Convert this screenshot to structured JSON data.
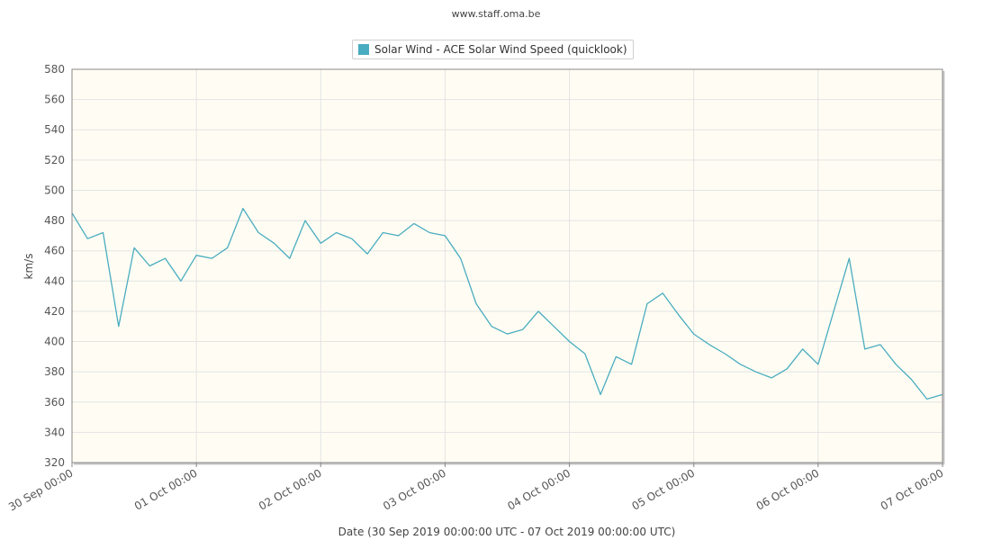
{
  "source_text": "www.staff.oma.be",
  "chart_data": {
    "type": "line",
    "title": "",
    "ylabel": "km/s",
    "xlabel": "Date (30 Sep 2019 00:00:00 UTC - 07 Oct 2019 00:00:00 UTC)",
    "ylim": [
      320,
      580
    ],
    "yticks": [
      320,
      340,
      360,
      380,
      400,
      420,
      440,
      460,
      480,
      500,
      520,
      540,
      560,
      580
    ],
    "xlim": [
      "2019-09-30 00:00",
      "2019-10-07 00:00"
    ],
    "xticks": [
      "30 Sep 00:00",
      "01 Oct 00:00",
      "02 Oct 00:00",
      "03 Oct 00:00",
      "04 Oct 00:00",
      "05 Oct 00:00",
      "06 Oct 00:00",
      "07 Oct 00:00"
    ],
    "grid": true,
    "legend": "top-center",
    "series": [
      {
        "name": "Solar Wind - ACE Solar Wind Speed (quicklook)",
        "color": "#4aacc0",
        "x": [
          "2019-09-30 00:00",
          "2019-09-30 03:00",
          "2019-09-30 06:00",
          "2019-09-30 09:00",
          "2019-09-30 12:00",
          "2019-09-30 15:00",
          "2019-09-30 18:00",
          "2019-09-30 21:00",
          "2019-10-01 00:00",
          "2019-10-01 03:00",
          "2019-10-01 06:00",
          "2019-10-01 09:00",
          "2019-10-01 12:00",
          "2019-10-01 15:00",
          "2019-10-01 18:00",
          "2019-10-01 21:00",
          "2019-10-02 00:00",
          "2019-10-02 03:00",
          "2019-10-02 06:00",
          "2019-10-02 09:00",
          "2019-10-02 12:00",
          "2019-10-02 15:00",
          "2019-10-02 18:00",
          "2019-10-02 21:00",
          "2019-10-03 00:00",
          "2019-10-03 03:00",
          "2019-10-03 06:00",
          "2019-10-03 09:00",
          "2019-10-03 12:00",
          "2019-10-03 15:00",
          "2019-10-03 18:00",
          "2019-10-03 21:00",
          "2019-10-04 00:00",
          "2019-10-04 03:00",
          "2019-10-04 06:00",
          "2019-10-04 09:00",
          "2019-10-04 12:00",
          "2019-10-04 15:00",
          "2019-10-04 18:00",
          "2019-10-04 21:00",
          "2019-10-05 00:00",
          "2019-10-05 03:00",
          "2019-10-05 06:00",
          "2019-10-05 09:00",
          "2019-10-05 12:00",
          "2019-10-05 15:00",
          "2019-10-05 18:00",
          "2019-10-05 21:00",
          "2019-10-06 00:00",
          "2019-10-06 03:00",
          "2019-10-06 06:00",
          "2019-10-06 09:00",
          "2019-10-06 12:00",
          "2019-10-06 15:00",
          "2019-10-06 18:00",
          "2019-10-06 21:00",
          "2019-10-07 00:00"
        ],
        "values": [
          485,
          468,
          472,
          410,
          462,
          450,
          455,
          440,
          457,
          455,
          462,
          488,
          472,
          465,
          455,
          480,
          465,
          472,
          468,
          458,
          472,
          470,
          478,
          472,
          470,
          455,
          425,
          410,
          405,
          408,
          420,
          410,
          400,
          392,
          365,
          390,
          385,
          425,
          432,
          418,
          405,
          398,
          392,
          385,
          380,
          376,
          382,
          395,
          385,
          420,
          455,
          395,
          398,
          385,
          375,
          362,
          365
        ]
      }
    ]
  }
}
